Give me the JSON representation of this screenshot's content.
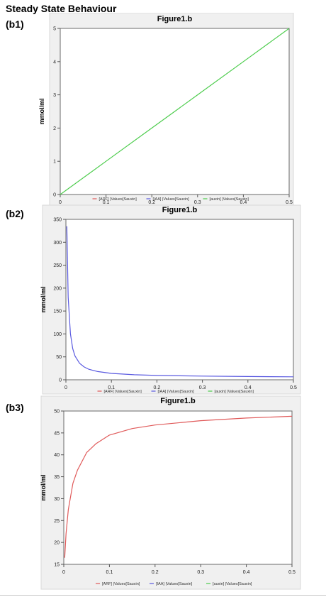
{
  "heading": "Steady State Behaviour",
  "legend_colors": {
    "ARF": "#e05a5a",
    "IAA": "#5a5ae0",
    "auxin": "#4ccc4c"
  },
  "panels": [
    {
      "label": "(b1)"
    },
    {
      "label": "(b2)"
    },
    {
      "label": "(b3)"
    }
  ],
  "chart_data": [
    {
      "type": "line",
      "title": "Figure1.b",
      "xlabel": "",
      "ylabel": "mmol/ml",
      "xlim": [
        0,
        0.5
      ],
      "ylim": [
        0,
        5
      ],
      "xticks": [
        "0",
        "0.1",
        "0.2",
        "0.3",
        "0.4",
        "0.5"
      ],
      "yticks": [
        "0",
        "1",
        "2",
        "3",
        "4",
        "5"
      ],
      "legend": [
        "[ARF] |Values[Sauxin]",
        "[IAA] |Values[Sauxin]",
        "[auxin] |Values[Sauxin]"
      ],
      "legend_position": "bottom",
      "series": [
        {
          "name": "[auxin] |Values[Sauxin]",
          "color": "#4ccc4c",
          "x": [
            0,
            0.1,
            0.2,
            0.3,
            0.4,
            0.5
          ],
          "y": [
            0,
            1,
            2,
            3,
            4,
            5
          ]
        }
      ]
    },
    {
      "type": "line",
      "title": "Figure1.b",
      "xlabel": "",
      "ylabel": "mmol/ml",
      "xlim": [
        0,
        0.5
      ],
      "ylim": [
        0,
        350
      ],
      "xticks": [
        "0",
        "0.1",
        "0.2",
        "0.3",
        "0.4",
        "0.5"
      ],
      "yticks": [
        "0",
        "50",
        "100",
        "150",
        "200",
        "250",
        "300",
        "350"
      ],
      "legend": [
        "[ARF] |Values[Sauxin]",
        "[IAA] |Values[Sauxin]",
        "[auxin] |Values[Sauxin]"
      ],
      "legend_position": "bottom",
      "series": [
        {
          "name": "[IAA] |Values[Sauxin]",
          "color": "#5a5ae0",
          "x": [
            0.002,
            0.005,
            0.01,
            0.015,
            0.02,
            0.03,
            0.04,
            0.05,
            0.07,
            0.1,
            0.15,
            0.2,
            0.3,
            0.4,
            0.5
          ],
          "y": [
            335,
            180,
            100,
            68,
            52,
            36,
            28,
            23,
            18,
            14,
            11,
            9.5,
            8,
            7.2,
            6.5
          ]
        }
      ]
    },
    {
      "type": "line",
      "title": "Figure1.b",
      "xlabel": "",
      "ylabel": "mmol/ml",
      "xlim": [
        0,
        0.5
      ],
      "ylim": [
        15,
        50
      ],
      "xticks": [
        "0",
        "0.1",
        "0.2",
        "0.3",
        "0.4",
        "0.5"
      ],
      "yticks": [
        "15",
        "20",
        "25",
        "30",
        "35",
        "40",
        "45",
        "50"
      ],
      "legend": [
        "[ARF] |Values[Sauxin]",
        "[IAA] |Values[Sauxin]",
        "[auxin] |Values[Sauxin]"
      ],
      "legend_position": "bottom",
      "series": [
        {
          "name": "[ARF] |Values[Sauxin]",
          "color": "#e05a5a",
          "x": [
            0.002,
            0.005,
            0.01,
            0.02,
            0.03,
            0.05,
            0.07,
            0.1,
            0.15,
            0.2,
            0.25,
            0.3,
            0.4,
            0.5
          ],
          "y": [
            16.5,
            22,
            27.5,
            33.5,
            36.5,
            40.5,
            42.5,
            44.5,
            46,
            46.8,
            47.3,
            47.8,
            48.4,
            48.8
          ]
        }
      ]
    }
  ]
}
